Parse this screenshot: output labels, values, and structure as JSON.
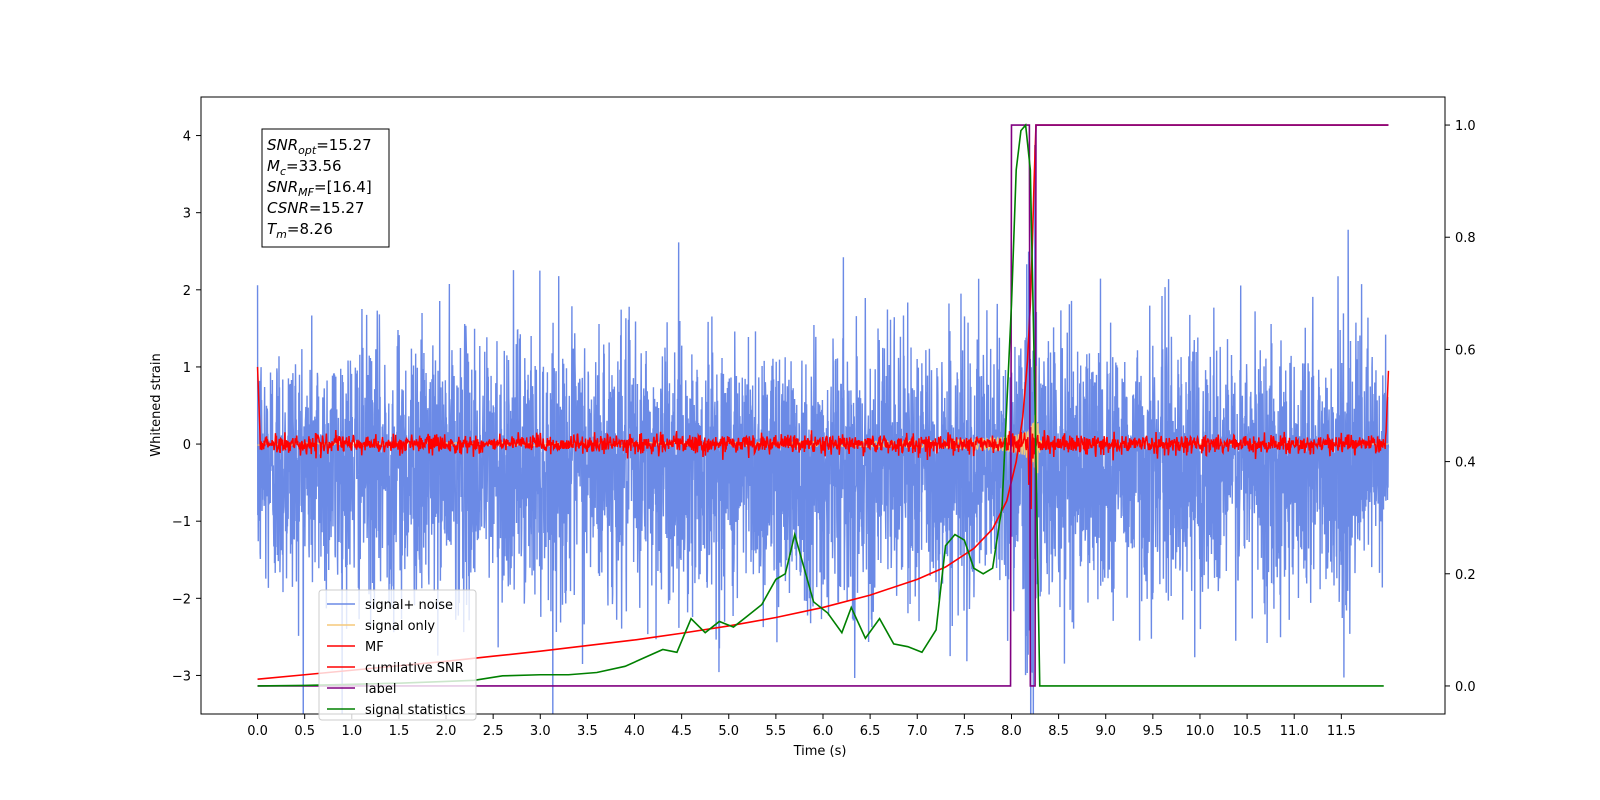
{
  "chart_data": {
    "type": "line",
    "xlabel": "Time (s)",
    "ylabel": "Whitened strain",
    "xlim": [
      -0.6,
      12.6
    ],
    "ylim": [
      -3.5,
      4.5
    ],
    "ylim_right": [
      -0.05,
      1.05
    ],
    "x_ticks": [
      0.0,
      0.5,
      1.0,
      1.5,
      2.0,
      2.5,
      3.0,
      3.5,
      4.0,
      4.5,
      5.0,
      5.5,
      6.0,
      6.5,
      7.0,
      7.5,
      8.0,
      8.5,
      9.0,
      9.5,
      10.0,
      10.5,
      11.0,
      11.5
    ],
    "x_tick_labels": [
      "0.0",
      "0.5",
      "1.0",
      "1.5",
      "2.0",
      "2.5",
      "3.0",
      "3.5",
      "4.0",
      "4.5",
      "5.0",
      "5.5",
      "6.0",
      "6.5",
      "7.0",
      "7.5",
      "8.0",
      "8.5",
      "9.0",
      "9.5",
      "10.0",
      "10.5",
      "11.0",
      "11.5"
    ],
    "y_ticks_left": [
      -3,
      -2,
      -1,
      0,
      1,
      2,
      3,
      4
    ],
    "y_tick_labels_left": [
      "−3",
      "−2",
      "−1",
      "0",
      "1",
      "2",
      "3",
      "4"
    ],
    "y_ticks_right": [
      0.0,
      0.2,
      0.4,
      0.6,
      0.8,
      1.0
    ],
    "y_tick_labels_right": [
      "0.0",
      "0.2",
      "0.4",
      "0.6",
      "0.8",
      "1.0"
    ],
    "legend_location": "lower-left",
    "grid": false,
    "series": [
      {
        "name": "signal+ noise",
        "color": "#6b8ae6",
        "axis": "left",
        "style": "noise",
        "noise_sigma": 0.85,
        "noise_offset": -0.3,
        "x_range": [
          0,
          12
        ]
      },
      {
        "name": "signal only",
        "color": "#f5c97a",
        "axis": "left",
        "style": "chirp",
        "merger_time": 8.26,
        "x_range": [
          0,
          12
        ]
      },
      {
        "name": "MF",
        "color": "#ff0000",
        "axis": "left",
        "style": "mf",
        "x_range": [
          0,
          12
        ],
        "edge_value": 1.0
      },
      {
        "name": "cumilative SNR",
        "color": "#ff0000",
        "axis": "right",
        "x": [
          0.0,
          0.5,
          1.0,
          1.5,
          2.0,
          2.5,
          3.0,
          3.5,
          4.0,
          4.5,
          5.0,
          5.5,
          6.0,
          6.5,
          7.0,
          7.3,
          7.6,
          7.8,
          7.95,
          8.05,
          8.12,
          8.17,
          8.2,
          8.22,
          8.24,
          8.26,
          8.3,
          9.0,
          10.0,
          11.0,
          12.0
        ],
        "y": [
          0.012,
          0.02,
          0.028,
          0.036,
          0.044,
          0.053,
          0.062,
          0.072,
          0.082,
          0.094,
          0.107,
          0.122,
          0.14,
          0.162,
          0.19,
          0.212,
          0.245,
          0.28,
          0.33,
          0.4,
          0.48,
          0.58,
          0.68,
          0.78,
          0.9,
          1.0,
          1.0,
          1.0,
          1.0,
          1.0,
          1.0
        ]
      },
      {
        "name": "label",
        "color": "#800080",
        "axis": "right",
        "x": [
          0.0,
          7.99,
          8.0,
          8.19,
          8.2,
          8.25,
          8.26,
          12.0
        ],
        "y": [
          0.0,
          0.0,
          1.0,
          1.0,
          0.0,
          0.0,
          1.0,
          1.0
        ]
      },
      {
        "name": "signal statistics",
        "color": "#008000",
        "axis": "right",
        "x": [
          0.0,
          0.5,
          1.0,
          1.5,
          2.0,
          2.3,
          2.6,
          3.0,
          3.3,
          3.6,
          3.9,
          4.1,
          4.3,
          4.45,
          4.6,
          4.75,
          4.9,
          5.05,
          5.2,
          5.35,
          5.5,
          5.6,
          5.7,
          5.8,
          5.9,
          6.05,
          6.2,
          6.3,
          6.45,
          6.6,
          6.75,
          6.9,
          7.05,
          7.2,
          7.3,
          7.4,
          7.5,
          7.6,
          7.7,
          7.8,
          7.9,
          8.0,
          8.05,
          8.1,
          8.15,
          8.2,
          8.25,
          8.3,
          8.35,
          9.0,
          10.0,
          11.0,
          11.95
        ],
        "y": [
          0.0,
          0.001,
          0.003,
          0.005,
          0.008,
          0.01,
          0.018,
          0.02,
          0.02,
          0.024,
          0.035,
          0.05,
          0.065,
          0.06,
          0.12,
          0.095,
          0.115,
          0.105,
          0.125,
          0.145,
          0.19,
          0.2,
          0.27,
          0.21,
          0.15,
          0.13,
          0.095,
          0.14,
          0.085,
          0.12,
          0.075,
          0.07,
          0.06,
          0.1,
          0.25,
          0.27,
          0.26,
          0.21,
          0.2,
          0.21,
          0.32,
          0.68,
          0.92,
          0.99,
          1.0,
          0.92,
          0.5,
          0.0,
          0.0,
          0.0,
          0.0,
          0.0,
          0.0
        ]
      }
    ],
    "annotation_lines": [
      {
        "main": "SNR",
        "sub": "opt",
        "rest": "=15.27"
      },
      {
        "main": "M",
        "sub": "c",
        "rest": "=33.56"
      },
      {
        "main": "SNR",
        "sub": "MF",
        "rest": "=[16.4]"
      },
      {
        "main": "CSNR",
        "sub": "",
        "rest": "=15.27"
      },
      {
        "main": "T",
        "sub": "m",
        "rest": "=8.26"
      }
    ]
  }
}
